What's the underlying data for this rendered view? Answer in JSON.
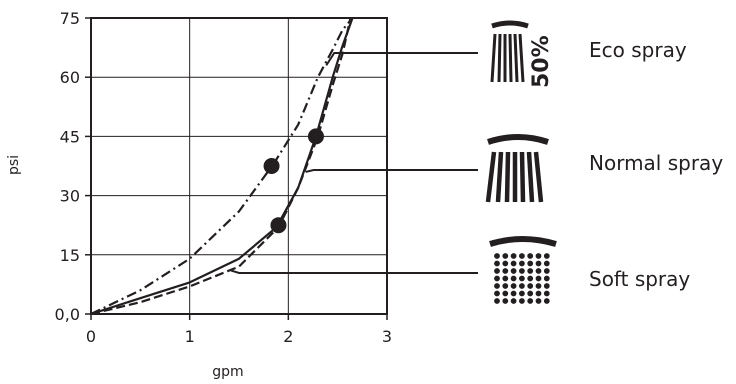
{
  "chart_data": {
    "type": "line",
    "xlabel": "gpm",
    "ylabel": "psi",
    "xlim": [
      0,
      3
    ],
    "ylim": [
      0,
      75
    ],
    "x_ticks": [
      "0",
      "1",
      "2",
      "3"
    ],
    "y_ticks": [
      "0,0",
      "15",
      "30",
      "45",
      "60",
      "75"
    ],
    "grid": true,
    "colors": {
      "line": "#231f20",
      "grid": "#231f20"
    },
    "series": [
      {
        "name": "Eco spray",
        "style": "dash-dot",
        "x": [
          0,
          0.5,
          1.0,
          1.5,
          1.85,
          2.1,
          2.3,
          2.45,
          2.55,
          2.65
        ],
        "y": [
          0,
          6,
          14,
          26,
          38,
          48,
          60,
          67,
          72,
          75
        ],
        "markers": [
          {
            "x": 1.83,
            "y": 37.5
          }
        ]
      },
      {
        "name": "Normal spray",
        "style": "solid",
        "x": [
          0,
          0.5,
          1.0,
          1.5,
          1.88,
          2.1,
          2.28,
          2.45,
          2.55,
          2.65
        ],
        "y": [
          0,
          4,
          8,
          14,
          22,
          32,
          45,
          60,
          68,
          75
        ],
        "markers": [
          {
            "x": 1.9,
            "y": 22.5
          },
          {
            "x": 2.28,
            "y": 45
          }
        ]
      },
      {
        "name": "Soft spray",
        "style": "dashed",
        "x": [
          0,
          0.5,
          1.0,
          1.5,
          1.9,
          2.1,
          2.3,
          2.45,
          2.55,
          2.63
        ],
        "y": [
          0,
          3,
          7,
          12,
          22,
          32,
          45,
          58,
          66,
          75
        ],
        "markers": []
      }
    ],
    "legend": [
      {
        "label": "Eco spray",
        "icon": "eco-spray-icon",
        "badge": "50%"
      },
      {
        "label": "Normal spray",
        "icon": "normal-spray-icon"
      },
      {
        "label": "Soft spray",
        "icon": "soft-spray-icon"
      }
    ]
  }
}
